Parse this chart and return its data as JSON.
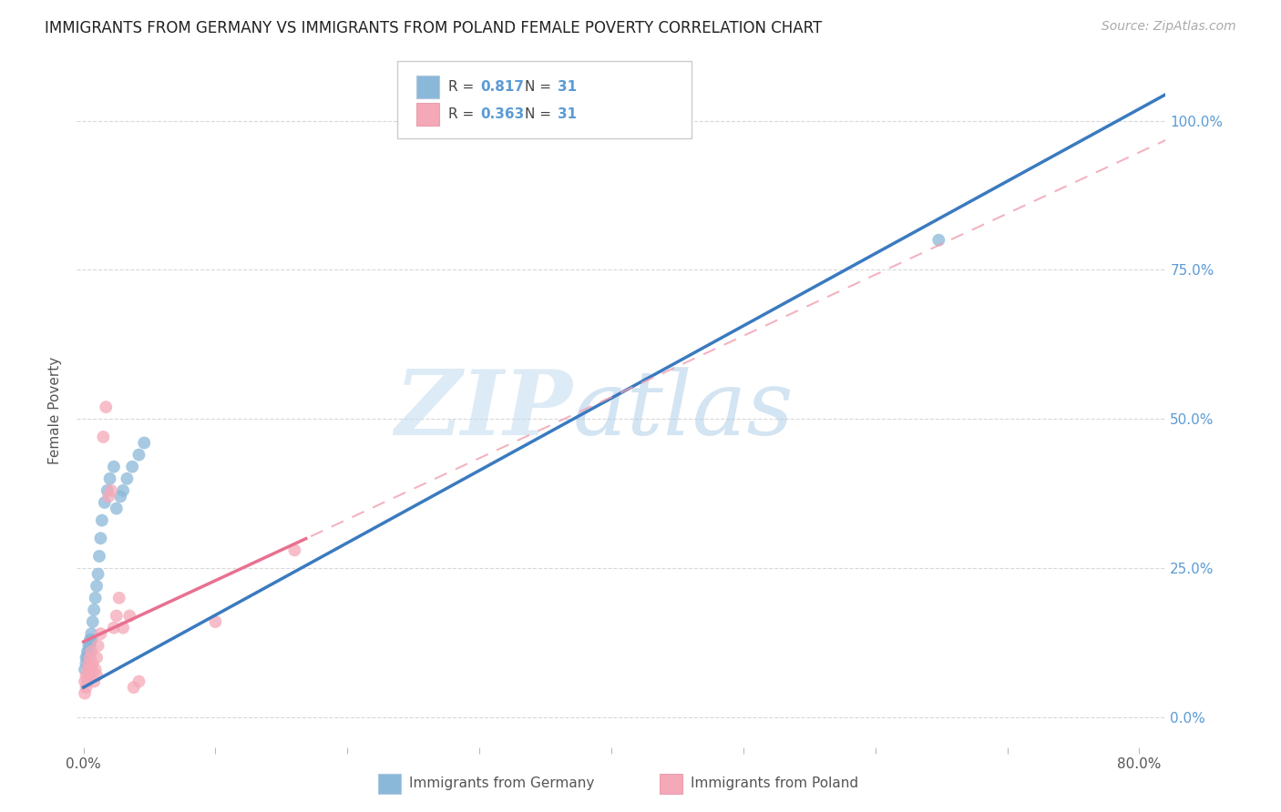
{
  "title": "IMMIGRANTS FROM GERMANY VS IMMIGRANTS FROM POLAND FEMALE POVERTY CORRELATION CHART",
  "source": "Source: ZipAtlas.com",
  "ylabel": "Female Poverty",
  "xlim": [
    -0.005,
    0.82
  ],
  "ylim": [
    -0.05,
    1.08
  ],
  "ytick_vals": [
    0.0,
    0.25,
    0.5,
    0.75,
    1.0
  ],
  "ytick_labels": [
    "0.0%",
    "25.0%",
    "50.0%",
    "75.0%",
    "100.0%"
  ],
  "xtick_vals": [
    0.0,
    0.1,
    0.2,
    0.3,
    0.4,
    0.5,
    0.6,
    0.7,
    0.8
  ],
  "xtick_labels": [
    "0.0%",
    "",
    "",
    "",
    "",
    "",
    "",
    "",
    "80.0%"
  ],
  "germany_R": 0.817,
  "poland_R": 0.363,
  "N": 31,
  "germany_color": "#8ab8d8",
  "poland_color": "#f5a8b8",
  "germany_line_color": "#3a7abf",
  "poland_line_color": "#e87090",
  "poland_dash_color": "#f0a0b0",
  "watermark_zip_color": "#c5dff0",
  "watermark_atlas_color": "#b0cfe8",
  "grid_color": "#d8d8d8",
  "title_color": "#222222",
  "source_color": "#aaaaaa",
  "ylabel_color": "#555555",
  "tick_label_color": "#555555",
  "right_tick_color": "#5b9bd5",
  "legend_border_color": "#cccccc",
  "germany_x": [
    0.001,
    0.002,
    0.002,
    0.003,
    0.003,
    0.004,
    0.004,
    0.005,
    0.005,
    0.006,
    0.006,
    0.007,
    0.008,
    0.009,
    0.01,
    0.011,
    0.012,
    0.013,
    0.014,
    0.016,
    0.018,
    0.02,
    0.023,
    0.025,
    0.028,
    0.03,
    0.033,
    0.037,
    0.042,
    0.046,
    0.648
  ],
  "germany_y": [
    0.08,
    0.09,
    0.1,
    0.1,
    0.11,
    0.11,
    0.12,
    0.12,
    0.13,
    0.13,
    0.14,
    0.16,
    0.18,
    0.2,
    0.22,
    0.24,
    0.27,
    0.3,
    0.33,
    0.36,
    0.38,
    0.4,
    0.42,
    0.35,
    0.37,
    0.38,
    0.4,
    0.42,
    0.44,
    0.46,
    0.8
  ],
  "poland_x": [
    0.001,
    0.001,
    0.002,
    0.002,
    0.003,
    0.003,
    0.004,
    0.005,
    0.005,
    0.006,
    0.006,
    0.007,
    0.008,
    0.009,
    0.01,
    0.01,
    0.011,
    0.013,
    0.015,
    0.017,
    0.019,
    0.021,
    0.023,
    0.025,
    0.027,
    0.03,
    0.035,
    0.038,
    0.042,
    0.1,
    0.16
  ],
  "poland_y": [
    0.04,
    0.06,
    0.05,
    0.07,
    0.06,
    0.08,
    0.09,
    0.07,
    0.1,
    0.08,
    0.11,
    0.09,
    0.06,
    0.08,
    0.1,
    0.07,
    0.12,
    0.14,
    0.47,
    0.52,
    0.37,
    0.38,
    0.15,
    0.17,
    0.2,
    0.15,
    0.17,
    0.05,
    0.06,
    0.16,
    0.28
  ],
  "legend_germany": "Immigrants from Germany",
  "legend_poland": "Immigrants from Poland"
}
